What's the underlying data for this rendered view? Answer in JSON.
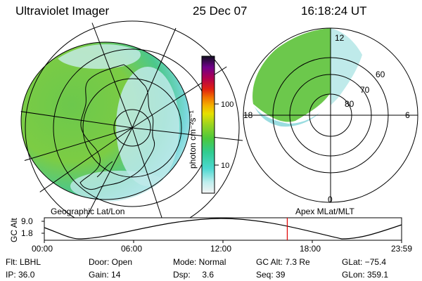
{
  "header": {
    "instrument": "Ultraviolet Imager",
    "date": "25 Dec 07",
    "time": "16:18:24 UT"
  },
  "colorbar": {
    "unit_label": "photon cm⁻²s⁻¹",
    "ticks": [
      "100",
      "10"
    ]
  },
  "polar_plot": {
    "mlt_labels": [
      "12",
      "18",
      "6",
      "0"
    ],
    "lat_labels": [
      "60",
      "70",
      "80"
    ]
  },
  "map_labels": {
    "left": "Geographic Lat/Lon",
    "right": "Apex MLat/MLT"
  },
  "orbit_plot": {
    "ylabel": "GC Alt",
    "yticks": [
      "9.0",
      "1.8"
    ],
    "xticks": [
      "00:00",
      "06:00",
      "12:00",
      "18:00",
      "23:59"
    ],
    "current_time_marker_fraction": 0.68
  },
  "info_panel": {
    "col1": [
      "Flt: LBHL",
      "IP: 36.0"
    ],
    "col2": [
      "Door: Open",
      "Gain: 14"
    ],
    "col3": [
      "Mode: Normal",
      "Dsp:     3.6"
    ],
    "col4": [
      "GC Alt: 7.3 Re",
      "Seq: 39"
    ],
    "col5": [
      "GLat: −75.4",
      "GLon: 359.1"
    ]
  }
}
